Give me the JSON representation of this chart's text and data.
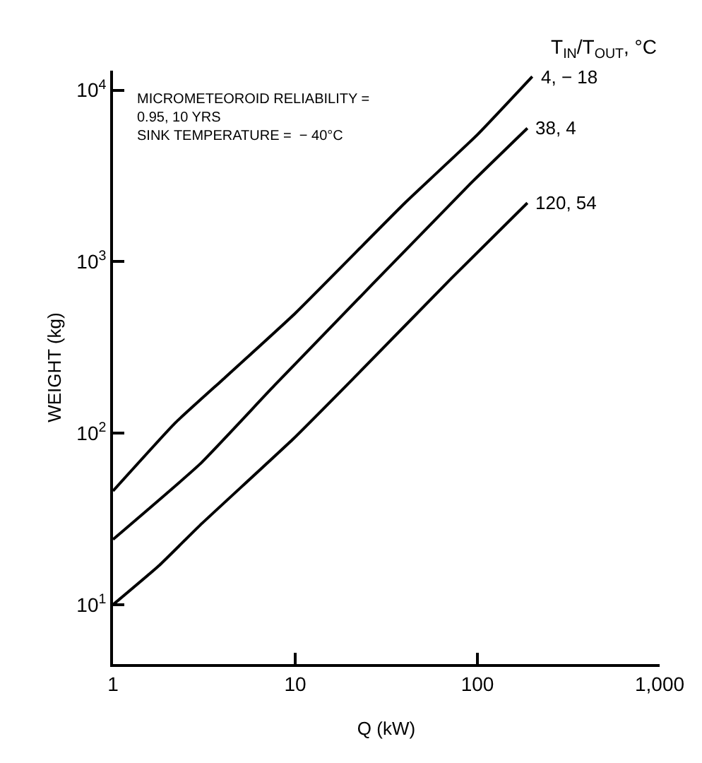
{
  "chart_data": {
    "type": "line",
    "xlabel": "Q (kW)",
    "ylabel": "WEIGHT (kg)",
    "legend_title": "T$_{IN}$/T$_{OUT}$, °C",
    "annotations": [
      "MICROMETEOROID RELIABILITY =\n0.95, 10 YRS\nSINK TEMPERATURE =  − 40°C"
    ],
    "series": [
      {
        "name": "4, − 18",
        "color": "#000000",
        "x": [
          1,
          2.2,
          4.1,
          10,
          40,
          100,
          200
        ],
        "values": [
          46,
          115,
          210,
          500,
          2200,
          5500,
          12000
        ]
      },
      {
        "name": "38, 4",
        "color": "#000000",
        "x": [
          1,
          3,
          7.7,
          90,
          188
        ],
        "values": [
          24,
          66,
          190,
          2800,
          6000
        ]
      },
      {
        "name": "120, 54",
        "color": "#000000",
        "x": [
          1,
          1.8,
          3,
          9.8,
          21,
          72,
          188
        ],
        "values": [
          10,
          17,
          29,
          93,
          210,
          800,
          2200
        ]
      }
    ],
    "log": "xy",
    "xlim": [
      1,
      1000
    ],
    "ylim": [
      4.5,
      13000
    ],
    "xticks": [
      1,
      10,
      100,
      {
        "value": 1000,
        "label": "1,000"
      }
    ],
    "yticks": [
      {
        "value": 10,
        "label": "10$^{1}$"
      },
      {
        "value": 100,
        "label": "10$^{2}$"
      },
      {
        "value": 1000,
        "label": "10$^{3}$"
      },
      {
        "value": 10000,
        "label": "10$^{4}$"
      }
    ],
    "grid": false,
    "legend": false,
    "marker": "none",
    "line_style": "solid"
  }
}
